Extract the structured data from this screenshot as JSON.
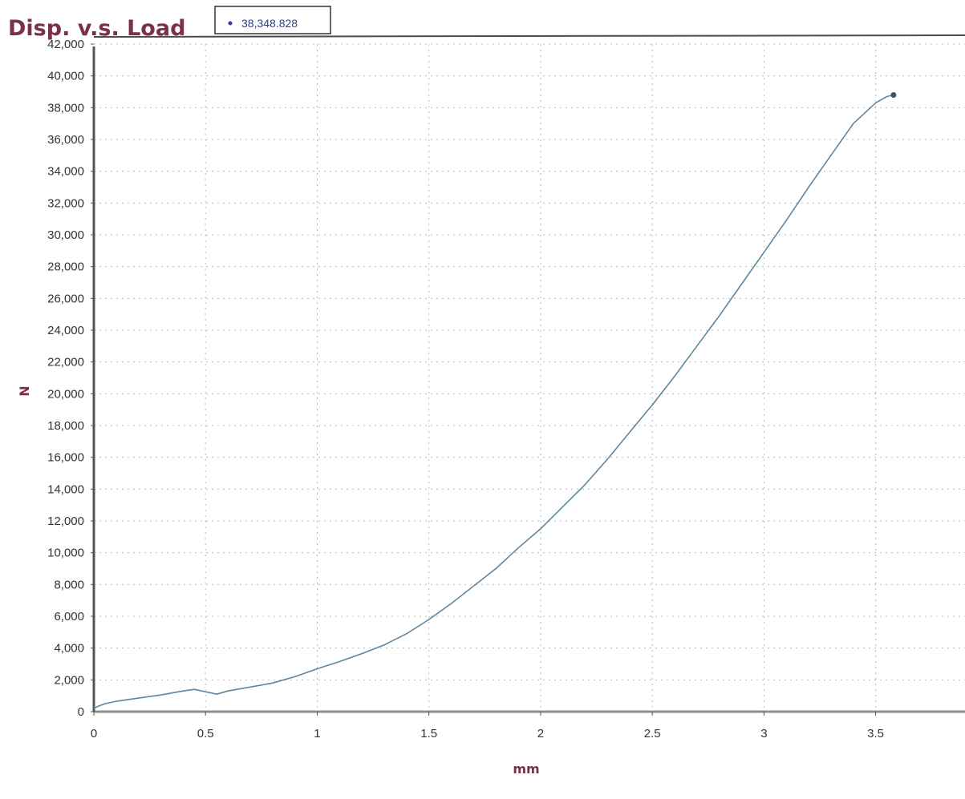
{
  "chart_data": {
    "type": "line",
    "title": "Disp. v.s. Load",
    "xlabel": "mm",
    "ylabel": "N",
    "xlim": [
      0,
      3.9
    ],
    "ylim": [
      0,
      42000
    ],
    "x_ticks": [
      0,
      0.5,
      1,
      1.5,
      2,
      2.5,
      3,
      3.5
    ],
    "x_tick_labels": [
      "0",
      "0.5",
      "1",
      "1.5",
      "2",
      "2.5",
      "3",
      "3.5"
    ],
    "y_ticks": [
      0,
      2000,
      4000,
      6000,
      8000,
      10000,
      12000,
      14000,
      16000,
      18000,
      20000,
      22000,
      24000,
      26000,
      28000,
      30000,
      32000,
      34000,
      36000,
      38000,
      40000,
      42000
    ],
    "y_tick_labels": [
      "0",
      "2,000",
      "4,000",
      "6,000",
      "8,000",
      "10,000",
      "12,000",
      "14,000",
      "16,000",
      "18,000",
      "20,000",
      "22,000",
      "24,000",
      "26,000",
      "28,000",
      "30,000",
      "32,000",
      "34,000",
      "36,000",
      "38,000",
      "40,000",
      "42,000"
    ],
    "grid": true,
    "legend_position": "top-left",
    "series": [
      {
        "name": "38,348.828",
        "color": "#5f86a0",
        "x": [
          0,
          0.02,
          0.05,
          0.1,
          0.2,
          0.3,
          0.4,
          0.45,
          0.5,
          0.55,
          0.6,
          0.7,
          0.8,
          0.85,
          0.9,
          1.0,
          1.1,
          1.2,
          1.3,
          1.4,
          1.5,
          1.6,
          1.7,
          1.8,
          1.9,
          2.0,
          2.1,
          2.2,
          2.3,
          2.4,
          2.5,
          2.6,
          2.7,
          2.8,
          2.9,
          3.0,
          3.1,
          3.2,
          3.3,
          3.4,
          3.5,
          3.55,
          3.58
        ],
        "y": [
          200,
          350,
          500,
          650,
          850,
          1050,
          1300,
          1400,
          1250,
          1100,
          1300,
          1550,
          1800,
          2000,
          2200,
          2700,
          3150,
          3650,
          4200,
          4900,
          5800,
          6800,
          7900,
          9000,
          10300,
          11500,
          12900,
          14300,
          15900,
          17600,
          19300,
          21100,
          23000,
          24900,
          26900,
          28900,
          30900,
          33000,
          35000,
          37000,
          38300,
          38700,
          38800
        ]
      }
    ],
    "marker_point": {
      "x": 3.58,
      "y": 38800
    }
  }
}
